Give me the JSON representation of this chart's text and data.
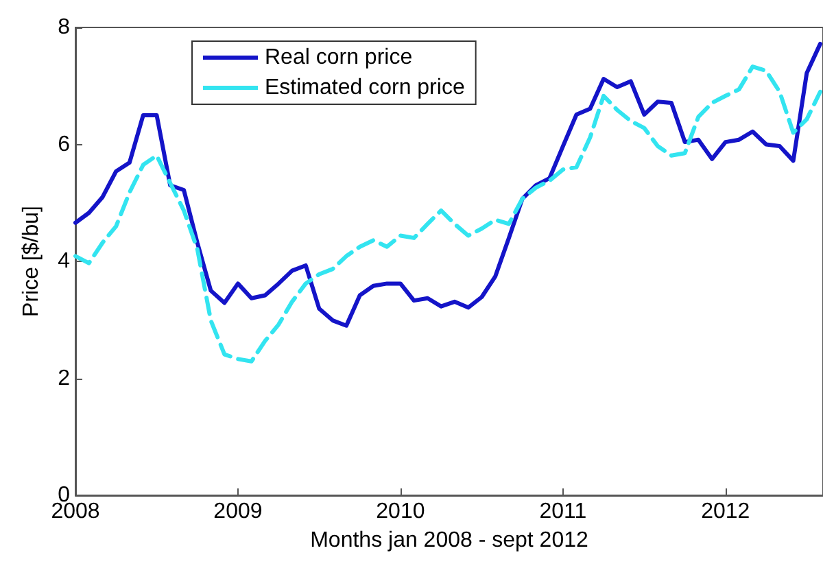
{
  "chart_data": {
    "type": "line",
    "xlabel": "Months jan 2008 - sept 2012",
    "ylabel": "Price [$/bu]",
    "x": [
      2008,
      2008.083,
      2008.167,
      2008.25,
      2008.333,
      2008.417,
      2008.5,
      2008.583,
      2008.667,
      2008.75,
      2008.833,
      2008.917,
      2009,
      2009.083,
      2009.167,
      2009.25,
      2009.333,
      2009.417,
      2009.5,
      2009.583,
      2009.667,
      2009.75,
      2009.833,
      2009.917,
      2010,
      2010.083,
      2010.167,
      2010.25,
      2010.333,
      2010.417,
      2010.5,
      2010.583,
      2010.667,
      2010.75,
      2010.833,
      2010.917,
      2011,
      2011.083,
      2011.167,
      2011.25,
      2011.333,
      2011.417,
      2011.5,
      2011.583,
      2011.667,
      2011.75,
      2011.833,
      2011.917,
      2012,
      2012.083,
      2012.167,
      2012.25,
      2012.333,
      2012.417,
      2012.5,
      2012.583
    ],
    "series": [
      {
        "name": "Real corn price",
        "color": "#1414c8",
        "line_style": "solid",
        "values": [
          4.66,
          4.83,
          5.1,
          5.54,
          5.69,
          6.5,
          6.5,
          5.3,
          5.22,
          4.32,
          3.5,
          3.29,
          3.62,
          3.37,
          3.42,
          3.62,
          3.84,
          3.93,
          3.19,
          2.99,
          2.9,
          3.42,
          3.58,
          3.62,
          3.62,
          3.33,
          3.37,
          3.23,
          3.31,
          3.21,
          3.39,
          3.74,
          4.4,
          5.07,
          5.3,
          5.42,
          5.97,
          6.51,
          6.61,
          7.12,
          6.98,
          7.08,
          6.51,
          6.73,
          6.71,
          6.04,
          6.08,
          5.75,
          6.04,
          6.08,
          6.22,
          6.0,
          5.97,
          5.72,
          7.22,
          7.72
        ]
      },
      {
        "name": "Estimated corn price",
        "color": "#33e4f0",
        "line_style": "dashed",
        "values": [
          4.09,
          3.97,
          4.32,
          4.6,
          5.18,
          5.65,
          5.81,
          5.34,
          4.87,
          4.21,
          2.99,
          2.41,
          2.33,
          2.29,
          2.64,
          2.92,
          3.31,
          3.62,
          3.78,
          3.87,
          4.09,
          4.25,
          4.36,
          4.25,
          4.44,
          4.4,
          4.64,
          4.87,
          4.64,
          4.44,
          4.56,
          4.71,
          4.64,
          5.07,
          5.26,
          5.38,
          5.57,
          5.61,
          6.12,
          6.83,
          6.59,
          6.4,
          6.28,
          5.97,
          5.81,
          5.85,
          6.47,
          6.71,
          6.83,
          6.94,
          7.33,
          7.26,
          6.9,
          6.2,
          6.43,
          6.9
        ]
      }
    ],
    "xlim": [
      2008,
      2012.6
    ],
    "xticks": [
      2008,
      2009,
      2010,
      2011,
      2012
    ],
    "ylim": [
      0,
      8
    ],
    "yticks": [
      0,
      2,
      4,
      6,
      8
    ],
    "grid": false,
    "legend": "top left",
    "marker": "none"
  }
}
